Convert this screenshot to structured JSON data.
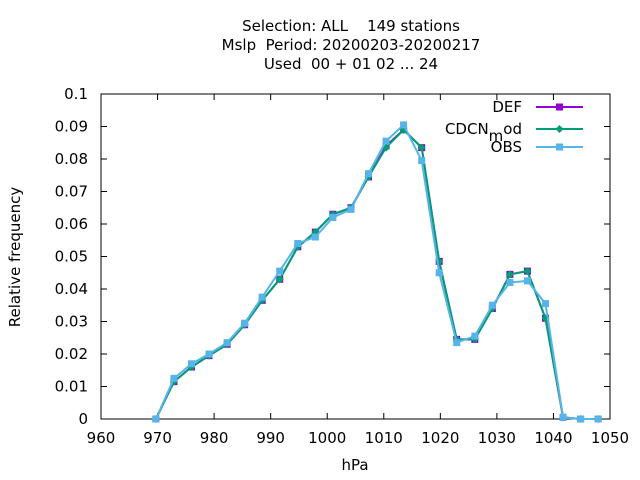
{
  "chart_data": {
    "type": "line",
    "title_lines": [
      "Selection: ALL    149 stations",
      "Mslp  Period: 20200203-20200217",
      "Used  00 + 01 02 ... 24"
    ],
    "xlabel": "hPa",
    "ylabel": "Relative frequency",
    "xlim": [
      960,
      1050
    ],
    "ylim": [
      0,
      0.1
    ],
    "xticks": [
      "960",
      "970",
      "980",
      "990",
      "1000",
      "1010",
      "1020",
      "1030",
      "1040",
      "1050"
    ],
    "yticks": [
      "0",
      "0.01",
      "0.02",
      "0.03",
      "0.04",
      "0.05",
      "0.06",
      "0.07",
      "0.08",
      "0.09",
      "0.1"
    ],
    "legend_position": "top-right",
    "grid": false,
    "series": [
      {
        "name": "DEF",
        "color": "#9400d3",
        "x": [
          969.7,
          972.9,
          976.0,
          979.1,
          982.3,
          985.4,
          988.5,
          991.6,
          994.8,
          997.9,
          1001.0,
          1004.2,
          1007.3,
          1010.4,
          1013.5,
          1016.7,
          1019.8,
          1022.9,
          1026.1,
          1029.2,
          1032.3,
          1035.4,
          1038.6,
          1041.7,
          1044.8,
          1047.9
        ],
        "y": [
          0,
          0.0115,
          0.016,
          0.0195,
          0.023,
          0.029,
          0.0365,
          0.043,
          0.053,
          0.0575,
          0.063,
          0.065,
          0.0745,
          0.084,
          0.089,
          0.0835,
          0.0485,
          0.0245,
          0.0245,
          0.034,
          0.0445,
          0.0455,
          0.031,
          0.0005,
          0,
          0
        ]
      },
      {
        "name": "CDCN_mod",
        "color": "#009e73",
        "x": [
          969.7,
          972.9,
          976.0,
          979.1,
          982.3,
          985.4,
          988.5,
          991.6,
          994.8,
          997.9,
          1001.0,
          1004.2,
          1007.3,
          1010.4,
          1013.5,
          1016.7,
          1019.8,
          1022.9,
          1026.1,
          1029.2,
          1032.3,
          1035.4,
          1038.6,
          1041.7,
          1044.8,
          1047.9
        ],
        "y": [
          0,
          0.0115,
          0.016,
          0.0195,
          0.023,
          0.029,
          0.0365,
          0.043,
          0.053,
          0.0575,
          0.063,
          0.065,
          0.0745,
          0.0835,
          0.089,
          0.0835,
          0.0485,
          0.0245,
          0.0245,
          0.034,
          0.0445,
          0.0455,
          0.031,
          0.0005,
          0,
          0
        ]
      },
      {
        "name": "OBS",
        "color": "#56b4e9",
        "x": [
          969.7,
          972.9,
          976.0,
          979.1,
          982.3,
          985.4,
          988.5,
          991.6,
          994.8,
          997.9,
          1001.0,
          1004.2,
          1007.3,
          1010.4,
          1013.5,
          1016.7,
          1019.8,
          1022.9,
          1026.1,
          1029.2,
          1032.3,
          1035.4,
          1038.6,
          1041.7,
          1044.8,
          1047.9
        ],
        "y": [
          0,
          0.0125,
          0.017,
          0.02,
          0.0235,
          0.0295,
          0.0375,
          0.0455,
          0.054,
          0.056,
          0.062,
          0.0645,
          0.0755,
          0.0855,
          0.0905,
          0.0795,
          0.045,
          0.0235,
          0.0255,
          0.035,
          0.042,
          0.0425,
          0.0355,
          0.0005,
          0,
          0
        ]
      }
    ]
  }
}
